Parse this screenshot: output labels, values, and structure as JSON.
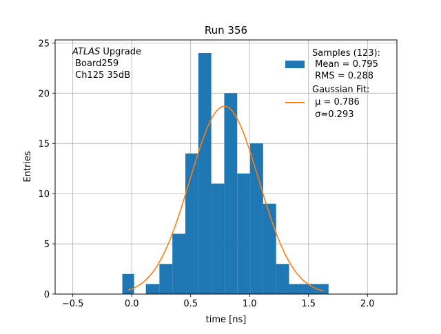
{
  "chart_data": {
    "type": "histogram",
    "title": "Run 356",
    "xlabel": "time [ns]",
    "ylabel": "Entries",
    "xlim": [
      -0.65,
      2.25
    ],
    "ylim": [
      0,
      25.3
    ],
    "grid": true,
    "xticks": [
      -0.5,
      0.0,
      0.5,
      1.0,
      1.5,
      2.0
    ],
    "xtick_labels": [
      "−0.5",
      "0.0",
      "0.5",
      "1.0",
      "1.5",
      "2.0"
    ],
    "yticks": [
      0,
      5,
      10,
      15,
      20,
      25
    ],
    "ytick_labels": [
      "0",
      "5",
      "10",
      "15",
      "20",
      "25"
    ],
    "histogram": {
      "name": "Samples (123):",
      "color": "#1f77b4",
      "bin_edges": [
        -0.08,
        0.02,
        0.12,
        0.235,
        0.345,
        0.455,
        0.565,
        0.675,
        0.785,
        0.895,
        1.005,
        1.115,
        1.225,
        1.335,
        1.445,
        1.555,
        1.67
      ],
      "counts": [
        2,
        0,
        1,
        3,
        6,
        14,
        24,
        11,
        20,
        12,
        15,
        9,
        3,
        1,
        1,
        1
      ]
    },
    "fit": {
      "name": "Gaussian Fit:",
      "color": "#ff7f0e",
      "mu": 0.786,
      "sigma": 0.293,
      "amplitude": 18.7,
      "x_range": [
        -0.03,
        1.63
      ]
    },
    "legend": {
      "position": "top-right",
      "entries": [
        {
          "line1": "Samples (123):",
          "line2": " Mean = 0.795",
          "line3": " RMS = 0.288"
        },
        {
          "line1": "Gaussian Fit:",
          "line2": " μ = 0.786",
          "line3": " σ=0.293"
        }
      ]
    },
    "annotation": {
      "line1_italic": "ATLAS",
      "line1_rest": " Upgrade",
      "line2": " Board259",
      "line3": " Ch125 35dB"
    }
  }
}
